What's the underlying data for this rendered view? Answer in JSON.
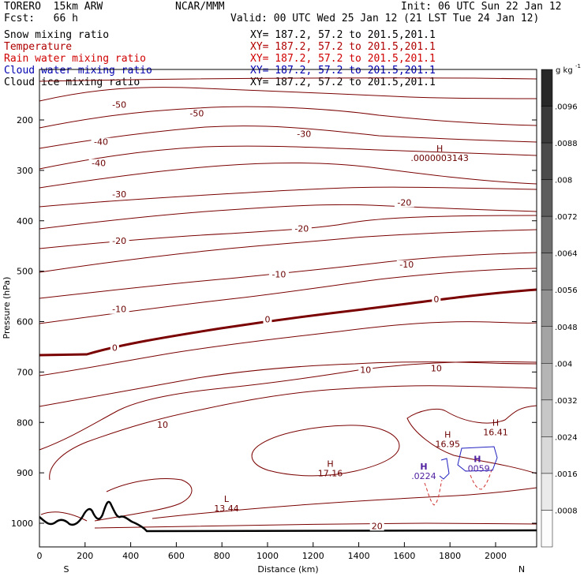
{
  "header": {
    "model": "TORERO  15km ARW",
    "center": "NCAR/MMM",
    "init": "Init: 06 UTC Sun 22 Jan 12",
    "fcst": "Fcst:   66 h",
    "valid": "Valid: 00 UTC Wed 25 Jan 12 (21 LST Tue 24 Jan 12)"
  },
  "fields": [
    {
      "name": "Snow mixing ratio",
      "color": "#000000",
      "xy": "XY= 187.2, 57.2 to 201.5,201.1"
    },
    {
      "name": "Temperature",
      "color": "#b00000",
      "xy": "XY= 187.2, 57.2 to 201.5,201.1"
    },
    {
      "name": "Rain water mixing ratio",
      "color": "#d00000",
      "xy": "XY= 187.2, 57.2 to 201.5,201.1"
    },
    {
      "name": "Cloud water mixing ratio",
      "color": "#0000b0",
      "xy": "XY= 187.2, 57.2 to 201.5,201.1"
    },
    {
      "name": "Cloud ice mixing ratio",
      "color": "#000000",
      "xy": "XY= 187.2, 57.2 to 201.5,201.1"
    }
  ],
  "colors": {
    "temperature": "#7a0000",
    "cloud_water": "#2020c0",
    "rain": "#d03030",
    "terrain": "#000000"
  },
  "chart_data": {
    "type": "contour cross-section",
    "xlabel": "Distance (km)",
    "ylabel": "Pressure (hPa)",
    "x_ticks": [
      "0",
      "200",
      "400",
      "600",
      "800",
      "1000",
      "1200",
      "1400",
      "1600",
      "1800",
      "2000"
    ],
    "y_ticks": [
      "200",
      "300",
      "400",
      "500",
      "600",
      "700",
      "800",
      "900",
      "1000"
    ],
    "xlim": [
      0,
      2180
    ],
    "ylim": [
      1050,
      100
    ],
    "direction_left": "S",
    "direction_right": "N",
    "colorbar": {
      "unit_label": "g kg",
      "unit_exp": "-1",
      "ticks": [
        ".0096",
        ".0088",
        ".008",
        ".0072",
        ".0064",
        ".0056",
        ".0048",
        ".004",
        ".0032",
        ".0024",
        ".0016",
        ".0008"
      ]
    },
    "temperature_labels": [
      {
        "text": "-50",
        "x": 690,
        "p": 191
      },
      {
        "text": "-50",
        "x": 350,
        "p": 174
      },
      {
        "text": "-40",
        "x": 260,
        "p": 290
      },
      {
        "text": "-40",
        "x": 270,
        "p": 248
      },
      {
        "text": "-30",
        "x": 1160,
        "p": 232
      },
      {
        "text": "-30",
        "x": 350,
        "p": 352
      },
      {
        "text": "-20",
        "x": 1600,
        "p": 368
      },
      {
        "text": "-20",
        "x": 1150,
        "p": 420
      },
      {
        "text": "-20",
        "x": 350,
        "p": 444
      },
      {
        "text": "-10",
        "x": 1610,
        "p": 491
      },
      {
        "text": "-10",
        "x": 1050,
        "p": 511
      },
      {
        "text": "-10",
        "x": 350,
        "p": 580
      },
      {
        "text": "0",
        "x": 1740,
        "p": 560
      },
      {
        "text": "0",
        "x": 1000,
        "p": 600
      },
      {
        "text": "0",
        "x": 330,
        "p": 656
      },
      {
        "text": "10",
        "x": 1740,
        "p": 697
      },
      {
        "text": "10",
        "x": 1430,
        "p": 700
      },
      {
        "text": "10",
        "x": 540,
        "p": 809
      },
      {
        "text": "20",
        "x": 1480,
        "p": 1010
      }
    ],
    "extrema": [
      {
        "kind": "H",
        "value": ".0000003143",
        "x": 1755,
        "p": 263
      },
      {
        "kind": "H",
        "value": "16.95",
        "x": 1790,
        "p": 830
      },
      {
        "kind": "H",
        "value": "16.41",
        "x": 2000,
        "p": 807
      },
      {
        "kind": "H",
        "value": "17.16",
        "x": 1275,
        "p": 888
      },
      {
        "kind": "L",
        "value": "13.44",
        "x": 820,
        "p": 958
      }
    ],
    "cloud_extrema": [
      {
        "kind": "H",
        "value": ".0224",
        "x": 1685,
        "p": 900
      },
      {
        "kind": "H",
        "value": ".0059",
        "x": 1920,
        "p": 885
      }
    ]
  }
}
